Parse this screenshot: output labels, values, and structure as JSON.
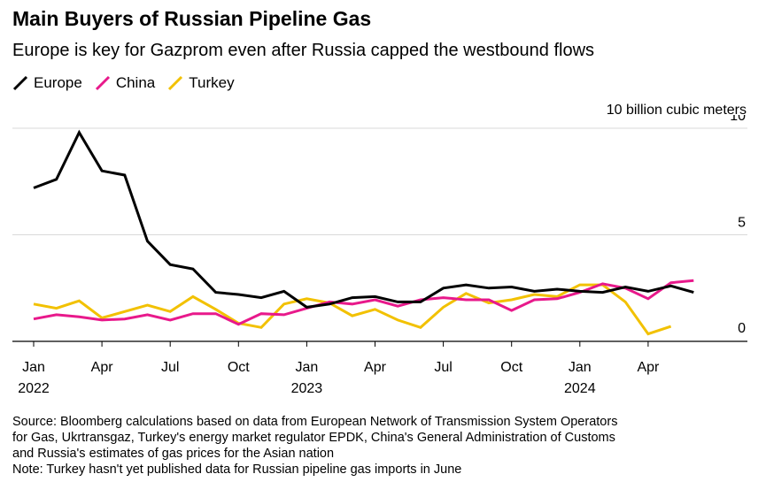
{
  "header": {
    "title": "Main Buyers of Russian Pipeline Gas",
    "subtitle": "Europe is key for Gazprom even after Russia capped the westbound flows"
  },
  "unit_label": "10 billion cubic meters",
  "footer": {
    "source_lines": [
      "Source: Bloomberg calculations based on data from European Network of Transmission System Operators",
      "for Gas, Ukrtransgaz, Turkey's energy market regulator EPDK, China's General Administration of Customs",
      "and Russia's estimates of gas prices for the Asian nation"
    ],
    "note": "Note: Turkey hasn't yet published data for Russian pipeline gas imports in June"
  },
  "chart_data": {
    "type": "line",
    "x_months": [
      "2022-01",
      "2022-02",
      "2022-03",
      "2022-04",
      "2022-05",
      "2022-06",
      "2022-07",
      "2022-08",
      "2022-09",
      "2022-10",
      "2022-11",
      "2022-12",
      "2023-01",
      "2023-02",
      "2023-03",
      "2023-04",
      "2023-05",
      "2023-06",
      "2023-07",
      "2023-08",
      "2023-09",
      "2023-10",
      "2023-11",
      "2023-12",
      "2024-01",
      "2024-02",
      "2024-03",
      "2024-04",
      "2024-05",
      "2024-06"
    ],
    "x_ticks": [
      {
        "month": "2022-01",
        "label": "Jan",
        "year": "2022"
      },
      {
        "month": "2022-04",
        "label": "Apr",
        "year": ""
      },
      {
        "month": "2022-07",
        "label": "Jul",
        "year": ""
      },
      {
        "month": "2022-10",
        "label": "Oct",
        "year": ""
      },
      {
        "month": "2023-01",
        "label": "Jan",
        "year": "2023"
      },
      {
        "month": "2023-04",
        "label": "Apr",
        "year": ""
      },
      {
        "month": "2023-07",
        "label": "Jul",
        "year": ""
      },
      {
        "month": "2023-10",
        "label": "Oct",
        "year": ""
      },
      {
        "month": "2024-01",
        "label": "Jan",
        "year": "2024"
      },
      {
        "month": "2024-04",
        "label": "Apr",
        "year": ""
      }
    ],
    "y_ticks": [
      0,
      5,
      10
    ],
    "ylim": [
      0,
      10
    ],
    "grid": true,
    "legend_position": "top-left",
    "series": [
      {
        "name": "Europe",
        "color": "#000000",
        "values": [
          7.2,
          7.6,
          9.8,
          8.0,
          7.8,
          4.7,
          3.6,
          3.4,
          2.3,
          2.2,
          2.05,
          2.35,
          1.6,
          1.75,
          2.05,
          2.1,
          1.85,
          1.85,
          2.5,
          2.65,
          2.5,
          2.55,
          2.35,
          2.45,
          2.35,
          2.3,
          2.55,
          2.35,
          2.6,
          2.3
        ]
      },
      {
        "name": "China",
        "color": "#e8198b",
        "values": [
          1.05,
          1.25,
          1.15,
          1.0,
          1.05,
          1.25,
          1.0,
          1.3,
          1.3,
          0.8,
          1.3,
          1.25,
          1.55,
          1.85,
          1.75,
          1.95,
          1.65,
          1.95,
          2.05,
          1.95,
          1.95,
          1.45,
          1.95,
          2.0,
          2.3,
          2.7,
          2.5,
          2.0,
          2.75,
          2.85
        ]
      },
      {
        "name": "Turkey",
        "color": "#f2c100",
        "values": [
          1.75,
          1.55,
          1.9,
          1.1,
          1.4,
          1.7,
          1.4,
          2.1,
          1.5,
          0.85,
          0.65,
          1.75,
          2.0,
          1.8,
          1.2,
          1.5,
          1.0,
          0.65,
          1.6,
          2.25,
          1.8,
          1.95,
          2.2,
          2.1,
          2.65,
          2.65,
          1.85,
          0.35,
          0.7
        ]
      }
    ]
  }
}
